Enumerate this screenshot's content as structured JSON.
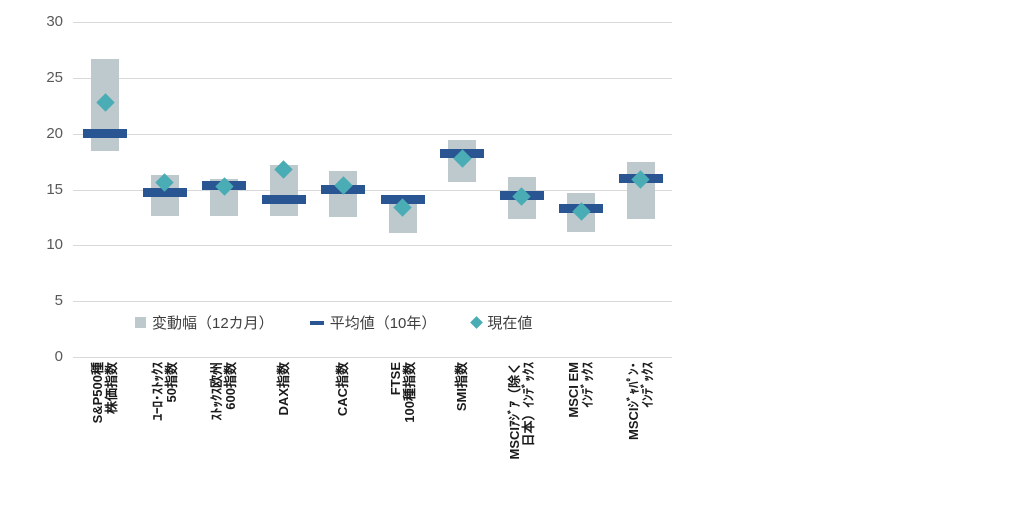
{
  "chart_data": {
    "type": "bar",
    "subtype": "range-bar-with-mean-and-current",
    "title": "",
    "xlabel": "",
    "ylabel": "",
    "ylim": [
      0,
      30
    ],
    "ytick_step": 5,
    "grid": true,
    "legend_position": "bottom-inside",
    "legend": [
      {
        "label": "変動幅（12カ月）",
        "marker": "square",
        "color": "#bdc9cc"
      },
      {
        "label": "平均値（10年）",
        "marker": "dash",
        "color": "#2a5593"
      },
      {
        "label": "現在値",
        "marker": "diamond",
        "color": "#4aacb4"
      }
    ],
    "categories": [
      {
        "label": [
          "S&P500種",
          "株価指数"
        ],
        "low": 18.5,
        "high": 26.7,
        "mean": 20.0,
        "current": 22.8
      },
      {
        "label": [
          "ﾕｰﾛ･ｽﾄｯｸｽ",
          "50指数"
        ],
        "low": 12.6,
        "high": 16.3,
        "mean": 14.7,
        "current": 15.6
      },
      {
        "label": [
          "ｽﾄｯｸｽ欧州",
          "600指数"
        ],
        "low": 12.6,
        "high": 15.9,
        "mean": 15.4,
        "current": 15.3
      },
      {
        "label": [
          "DAX指数"
        ],
        "low": 12.6,
        "high": 17.2,
        "mean": 14.1,
        "current": 16.8
      },
      {
        "label": [
          "CAC指数"
        ],
        "low": 12.6,
        "high": 16.7,
        "mean": 15.0,
        "current": 15.4
      },
      {
        "label": [
          "FTSE",
          "100種指数"
        ],
        "low": 11.1,
        "high": 14.3,
        "mean": 14.1,
        "current": 13.4
      },
      {
        "label": [
          "SMI指数"
        ],
        "low": 15.6,
        "high": 19.4,
        "mean": 18.2,
        "current": 17.8
      },
      {
        "label": [
          "MSCIｱｼﾞｱ（除く",
          "日本）ｲﾝﾃﾞｯｸｽ"
        ],
        "low": 12.3,
        "high": 16.1,
        "mean": 14.5,
        "current": 14.4
      },
      {
        "label": [
          "MSCI EM",
          "ｲﾝﾃﾞｯｸｽ"
        ],
        "low": 11.2,
        "high": 14.7,
        "mean": 13.3,
        "current": 13.0
      },
      {
        "label": [
          "MSCIｼﾞｬﾊﾟﾝ･",
          "ｲﾝﾃﾞｯｸｽ"
        ],
        "low": 12.4,
        "high": 17.5,
        "mean": 16.0,
        "current": 15.9
      }
    ]
  },
  "colors": {
    "range_bar": "#bdc9cc",
    "mean_bar": "#2a5593",
    "current_diamond": "#4aacb4",
    "gridline": "#d9d9d9",
    "axis_tick_text": "#595959",
    "category_label_text": "#1a1a1a",
    "legend_text": "#3f3f3f",
    "background": "#ffffff"
  }
}
